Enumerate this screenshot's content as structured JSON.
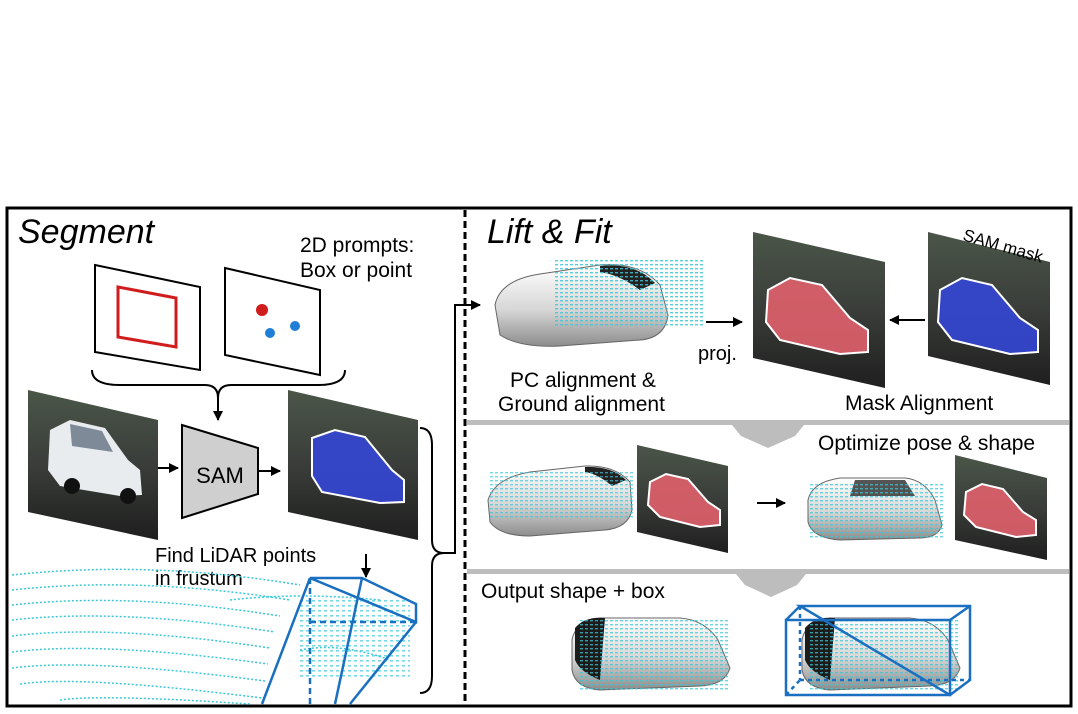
{
  "panels": {
    "segment": {
      "title": "Segment"
    },
    "lift_fit": {
      "title": "Lift & Fit"
    }
  },
  "labels": {
    "prompts_line1": "2D prompts:",
    "prompts_line2": "Box or point",
    "sam": "SAM",
    "lidar_line1": "Find LiDAR points",
    "lidar_line2": "in frustum",
    "sam_mask": "SAM mask",
    "proj": "proj.",
    "pc_align_line1": "PC alignment &",
    "pc_align_line2": "Ground alignment",
    "mask_alignment": "Mask Alignment",
    "optimize": "Optimize pose & shape",
    "output": "Output shape + box"
  },
  "colors": {
    "border": "#000000",
    "prompt_box": "#d01c1c",
    "prompt_dot_red": "#d01c1c",
    "prompt_dot_blue": "#1f7fd6",
    "mask_blue": "#3347d8",
    "mask_red": "#e0606c",
    "lidar_cyan": "#38c8d8",
    "bbox_blue": "#1a6fc0",
    "divider_gray": "#bdbdbd",
    "car_gray": "#d9d9d9"
  },
  "icons": [
    "frame-icon",
    "box-prompt-icon",
    "point-prompt-icon",
    "sam-encoder-icon",
    "car-mesh-icon",
    "lidar-cloud-icon",
    "frustum-icon",
    "bounding-box-icon",
    "arrow-icon",
    "brace-icon"
  ]
}
